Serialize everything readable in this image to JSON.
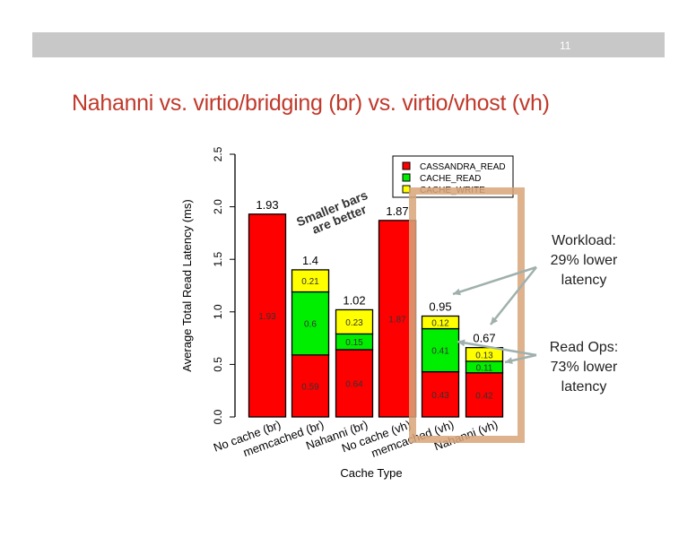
{
  "slide": {
    "page_number": "11",
    "title": "Nahanni vs. virtio/bridging (br) vs. virtio/vhost (vh)",
    "annotation_smaller": [
      "Smaller bars",
      "are better"
    ],
    "callout_workload": [
      "Workload:",
      "29% lower",
      "latency"
    ],
    "callout_readops": [
      "Read Ops:",
      "73% lower",
      "latency"
    ]
  },
  "chart_data": {
    "type": "bar",
    "stacked": true,
    "title": "",
    "xlabel": "Cache Type",
    "ylabel": "Average Total Read Latency (ms)",
    "ylim": [
      0,
      2.5
    ],
    "yticks": [
      "0.0",
      "0.5",
      "1.0",
      "1.5",
      "2.0",
      "2.5"
    ],
    "categories": [
      "No cache (br)",
      "memcached (br)",
      "Nahanni (br)",
      "No cache (vh)",
      "memcached (vh)",
      "Nahanni (vh)"
    ],
    "totals": [
      "1.93",
      "1.4",
      "1.02",
      "1.87",
      "0.95",
      "0.67"
    ],
    "series": [
      {
        "name": "CASSANDRA_READ",
        "color": "#ff0000",
        "values": [
          1.93,
          0.59,
          0.64,
          1.87,
          0.43,
          0.42
        ]
      },
      {
        "name": "CACHE_READ",
        "color": "#00ee00",
        "values": [
          0,
          0.6,
          0.15,
          0,
          0.41,
          0.11
        ]
      },
      {
        "name": "CACHE_WRITE",
        "color": "#ffff00",
        "values": [
          0,
          0.21,
          0.23,
          0,
          0.12,
          0.13
        ]
      }
    ],
    "legend": "top-right",
    "grid": false,
    "highlight_color": "#d9a57a",
    "arrow_color": "#9fb0ad"
  }
}
